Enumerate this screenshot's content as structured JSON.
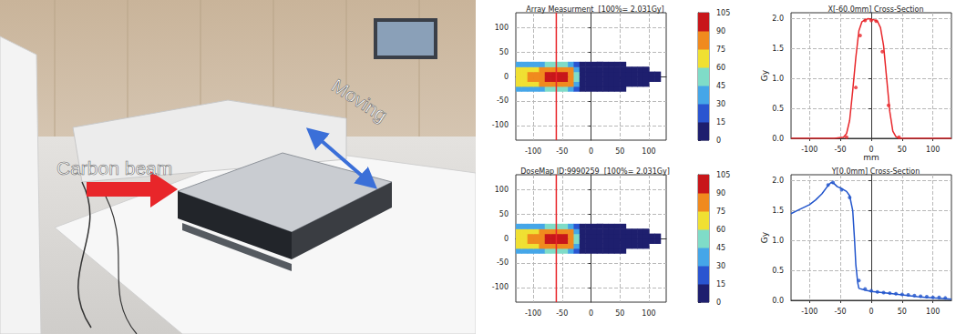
{
  "photo": {
    "labels": {
      "beam": "Carbon beam",
      "motion": "Moving"
    }
  },
  "chart_data": [
    {
      "type": "heatmap",
      "title": "Array Measurment  [100%= 2.031Gy]",
      "x_centers": [
        -125,
        -115,
        -105,
        -95,
        -85,
        -75,
        -65,
        -55,
        -45,
        -35,
        -25,
        -15,
        -5,
        5,
        15,
        25,
        35,
        45,
        55,
        65,
        75,
        85,
        95,
        105,
        115
      ],
      "y_centers": [
        -25,
        -15,
        -5,
        5,
        15,
        25
      ],
      "z": [
        [
          36,
          37,
          39,
          40,
          43,
          46,
          49,
          48,
          46,
          42,
          23,
          7,
          5,
          5,
          4,
          4,
          4,
          3,
          3,
          null,
          null,
          null,
          null,
          null,
          null
        ],
        [
          66,
          68,
          71,
          74,
          78,
          85,
          89,
          87,
          84,
          77,
          41,
          12,
          9,
          8,
          7,
          7,
          6,
          6,
          5,
          5,
          4,
          4,
          3,
          null,
          null
        ],
        [
          72,
          74,
          77,
          80,
          85,
          92,
          97,
          95,
          91,
          84,
          45,
          14,
          10,
          9,
          8,
          8,
          7,
          7,
          6,
          6,
          5,
          5,
          4,
          3,
          2
        ],
        [
          72,
          74,
          77,
          80,
          85,
          92,
          97,
          95,
          91,
          84,
          45,
          14,
          10,
          9,
          8,
          8,
          7,
          7,
          6,
          6,
          5,
          5,
          4,
          3,
          2
        ],
        [
          66,
          68,
          71,
          74,
          78,
          85,
          89,
          87,
          84,
          77,
          41,
          12,
          9,
          8,
          7,
          7,
          6,
          6,
          5,
          5,
          4,
          4,
          3,
          null,
          null
        ],
        [
          36,
          37,
          39,
          40,
          43,
          46,
          49,
          48,
          46,
          42,
          23,
          7,
          5,
          5,
          4,
          4,
          4,
          3,
          3,
          null,
          null,
          null,
          null,
          null,
          null
        ]
      ],
      "xlim": [
        -130,
        130
      ],
      "ylim": [
        -130,
        130
      ],
      "xticks": [
        -100,
        -50,
        0,
        50,
        100
      ],
      "yticks": [
        -100,
        -50,
        0,
        50,
        100
      ],
      "grid": true,
      "vertical_line": {
        "x": -60,
        "color": "#e8262a"
      },
      "colorbar": {
        "range": [
          0,
          105
        ],
        "ticks": [
          0,
          15,
          30,
          45,
          60,
          75,
          90,
          105
        ],
        "colors": [
          "#1e1f6e",
          "#2a55d0",
          "#45a6e8",
          "#7fdcc8",
          "#f0e032",
          "#f08a1e",
          "#c8161a"
        ]
      }
    },
    {
      "type": "line",
      "title": "X[-60.0mm] Cross-Section",
      "xlabel": "mm",
      "ylabel": "Gy",
      "xlim": [
        -130,
        130
      ],
      "ylim": [
        0,
        2.1
      ],
      "xticks": [
        -100,
        -50,
        0,
        50,
        100
      ],
      "yticks": [
        {
          "value": 0,
          "label": "0.0"
        },
        {
          "value": 0.5,
          "label": "0.5"
        },
        {
          "value": 1,
          "label": "1.0"
        },
        {
          "value": 1.5,
          "label": "1.5"
        },
        {
          "value": 2,
          "label": "2.0"
        }
      ],
      "grid": true,
      "series": [
        {
          "type": "line",
          "color": "#e8262a",
          "line_style": "solid",
          "x": [
            -130,
            -60,
            -45,
            -40,
            -35,
            -30,
            -25,
            -20,
            -15,
            -10,
            -5,
            0,
            5,
            10,
            15,
            20,
            25,
            30,
            35,
            40,
            45,
            60,
            130
          ],
          "values": [
            0,
            0,
            0.02,
            0.08,
            0.3,
            0.8,
            1.35,
            1.8,
            1.95,
            1.98,
            2.0,
            1.99,
            1.98,
            1.96,
            1.85,
            1.55,
            1.0,
            0.45,
            0.12,
            0.03,
            0,
            0,
            0
          ]
        },
        {
          "type": "scatter",
          "color": "#e8262a",
          "marker": "circle",
          "x": [
            -40,
            -25,
            -18,
            -10,
            0,
            8,
            18,
            28,
            45
          ],
          "values": [
            0.02,
            0.85,
            1.72,
            1.97,
            1.97,
            1.96,
            1.45,
            0.55,
            0.02
          ]
        }
      ]
    },
    {
      "type": "heatmap",
      "title": "DoseMap ID:9990259  [100%= 2.031Gy]",
      "x_centers": [
        -125,
        -115,
        -105,
        -95,
        -85,
        -75,
        -65,
        -55,
        -45,
        -35,
        -25,
        -15,
        -5,
        5,
        15,
        25,
        35,
        45,
        55,
        65,
        75,
        85,
        95,
        105,
        115
      ],
      "y_centers": [
        -25,
        -15,
        -5,
        5,
        15,
        25
      ],
      "z": [
        [
          36,
          37,
          39,
          40,
          43,
          46,
          49,
          48,
          46,
          42,
          23,
          7,
          5,
          5,
          4,
          4,
          4,
          3,
          3,
          null,
          null,
          null,
          null,
          null,
          null
        ],
        [
          66,
          68,
          71,
          74,
          78,
          85,
          89,
          87,
          84,
          77,
          41,
          12,
          9,
          8,
          7,
          7,
          6,
          6,
          5,
          5,
          4,
          4,
          3,
          null,
          null
        ],
        [
          72,
          74,
          77,
          80,
          85,
          92,
          97,
          95,
          91,
          84,
          45,
          14,
          10,
          9,
          8,
          8,
          7,
          7,
          6,
          6,
          5,
          5,
          4,
          3,
          2
        ],
        [
          72,
          74,
          77,
          80,
          85,
          92,
          97,
          95,
          91,
          84,
          45,
          14,
          10,
          9,
          8,
          8,
          7,
          7,
          6,
          6,
          5,
          5,
          4,
          3,
          2
        ],
        [
          66,
          68,
          71,
          74,
          78,
          85,
          89,
          87,
          84,
          77,
          41,
          12,
          9,
          8,
          7,
          7,
          6,
          6,
          5,
          5,
          4,
          4,
          3,
          null,
          null
        ],
        [
          36,
          37,
          39,
          40,
          43,
          46,
          49,
          48,
          46,
          42,
          23,
          7,
          5,
          5,
          4,
          4,
          4,
          3,
          3,
          null,
          null,
          null,
          null,
          null,
          null
        ]
      ],
      "xlim": [
        -130,
        130
      ],
      "ylim": [
        -130,
        130
      ],
      "xticks": [
        -100,
        -50,
        0,
        50,
        100
      ],
      "yticks": [
        -100,
        -50,
        0,
        50,
        100
      ],
      "grid": true,
      "vertical_line": {
        "x": -60,
        "color": "#e8262a"
      },
      "colorbar": {
        "range": [
          0,
          105
        ],
        "ticks": [
          0,
          15,
          30,
          45,
          60,
          75,
          90,
          105
        ],
        "colors": [
          "#1e1f6e",
          "#2a55d0",
          "#45a6e8",
          "#7fdcc8",
          "#f0e032",
          "#f08a1e",
          "#c8161a"
        ]
      }
    },
    {
      "type": "line",
      "title": "Y[0.0mm] Cross-Section",
      "ylabel": "Gy",
      "xlim": [
        -130,
        130
      ],
      "ylim": [
        0,
        2.1
      ],
      "xticks": [
        -100,
        -50,
        0,
        50,
        100
      ],
      "yticks": [
        {
          "value": 0,
          "label": "0.0"
        },
        {
          "value": 0.5,
          "label": "0.5"
        },
        {
          "value": 1,
          "label": "1.0"
        },
        {
          "value": 1.5,
          "label": "1.5"
        },
        {
          "value": 2,
          "label": "2.0"
        }
      ],
      "grid": true,
      "series": [
        {
          "type": "line",
          "color": "#2255cc",
          "line_style": "solid",
          "x": [
            -130,
            -120,
            -110,
            -100,
            -90,
            -80,
            -70,
            -65,
            -60,
            -55,
            -50,
            -45,
            -40,
            -35,
            -30,
            -27,
            -25,
            -22,
            -20,
            -10,
            0,
            25,
            50,
            75,
            100,
            130
          ],
          "values": [
            1.45,
            1.5,
            1.55,
            1.6,
            1.68,
            1.78,
            1.92,
            1.97,
            1.95,
            1.9,
            1.88,
            1.85,
            1.82,
            1.75,
            1.5,
            1.0,
            0.6,
            0.3,
            0.2,
            0.17,
            0.15,
            0.12,
            0.09,
            0.06,
            0.04,
            0.02
          ]
        },
        {
          "type": "scatter",
          "color": "#2255cc",
          "marker": "circle",
          "x": [
            -70,
            -62,
            -48,
            -35,
            -20,
            -10,
            0,
            10,
            20,
            30,
            40,
            50,
            60,
            70,
            80,
            90,
            100,
            110,
            120
          ],
          "values": [
            1.93,
            1.97,
            1.85,
            1.72,
            0.33,
            0.19,
            0.16,
            0.14,
            0.13,
            0.12,
            0.11,
            0.1,
            0.09,
            0.08,
            0.07,
            0.06,
            0.05,
            0.05,
            0.04
          ]
        }
      ]
    }
  ]
}
